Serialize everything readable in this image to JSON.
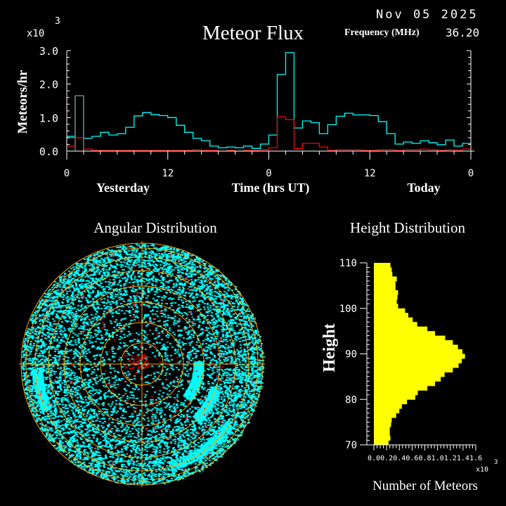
{
  "header": {
    "date": "Nov 05 2025",
    "title": "Meteor Flux",
    "frequency_label": "Frequency (MHz)",
    "frequency_value": "36.20"
  },
  "chart_data": [
    {
      "type": "line",
      "title": "Meteor Flux",
      "ylabel": "Meteors/hr",
      "yscale_label": "x10",
      "yscale_exp": "3",
      "xlabel": "Time (hrs UT)",
      "day_labels": [
        "Yesterday",
        "Today"
      ],
      "x_tick_labels": [
        "0",
        "12",
        "0",
        "12",
        "0"
      ],
      "x_tick_hours": [
        0,
        12,
        24,
        36,
        48
      ],
      "y_tick_labels": [
        "0.0",
        "1.0",
        "2.0",
        "3.0"
      ],
      "ylim": [
        0,
        3.0
      ],
      "xlim": [
        0,
        48
      ],
      "step": "histogram, hourly bins",
      "colors": {
        "total": "#00ffff",
        "secondary": "#ff0000",
        "previous": "#808080",
        "axes": "#ffffff"
      },
      "series": [
        {
          "color": "#00ffff",
          "values": [
            0.44,
            1.65,
            0.38,
            0.44,
            0.56,
            0.48,
            0.52,
            0.71,
            1.05,
            1.15,
            1.09,
            1.06,
            1.0,
            0.77,
            0.56,
            0.38,
            0.31,
            0.15,
            0.1,
            0.12,
            0.1,
            0.15,
            0.08,
            0.21,
            0.48,
            2.29,
            2.94,
            0.69,
            0.9,
            0.85,
            0.52,
            0.79,
            1.04,
            1.13,
            1.08,
            1.08,
            1.06,
            0.88,
            0.52,
            0.21,
            0.27,
            0.23,
            0.31,
            0.25,
            0.19,
            0.33,
            0.15,
            0.23
          ]
        },
        {
          "color": "#ff0000",
          "values": [
            0.15,
            0.4,
            0.06,
            0.02,
            0.02,
            0.02,
            0.02,
            0.02,
            0.02,
            0.02,
            0.02,
            0.02,
            0.02,
            0.02,
            0.02,
            0.04,
            0.02,
            0.02,
            0.0,
            0.02,
            0.0,
            0.02,
            0.02,
            0.04,
            0.1,
            1.02,
            0.94,
            0.08,
            0.23,
            0.23,
            0.12,
            0.02,
            0.04,
            0.04,
            0.04,
            0.02,
            0.02,
            0.04,
            0.04,
            0.02,
            0.04,
            0.04,
            0.06,
            0.04,
            0.02,
            0.04,
            0.02,
            0.06
          ]
        },
        {
          "color": "#808080",
          "values": [
            0.4,
            1.65
          ]
        }
      ]
    },
    {
      "type": "scatter",
      "title": "Angular Distribution",
      "projection": "polar (all-sky)",
      "colors": {
        "points": "#00ffff",
        "secondary_points": "#ff0000",
        "grid": "#ffa500"
      }
    },
    {
      "type": "bar",
      "orientation": "horizontal",
      "title": "Height Distribution",
      "ylabel": "Height",
      "xlabel": "Number of Meteors",
      "xscale_label": "x10",
      "xscale_exp": "3",
      "y_tick_labels": [
        "70",
        "80",
        "90",
        "100",
        "110"
      ],
      "x_tick_labels": [
        "0.0",
        "0.2",
        "0.4",
        "0.6",
        "0.8",
        "1.0",
        "1.2",
        "1.4",
        "1.6"
      ],
      "ylim": [
        70,
        110
      ],
      "xlim": [
        0,
        1.6
      ],
      "color": "#ffff00",
      "bin_top_heights": [
        110,
        109,
        108,
        107,
        106,
        105,
        104,
        103,
        102,
        101,
        100,
        99,
        98,
        97,
        96,
        95,
        94,
        93,
        92,
        91,
        90,
        89,
        88,
        87,
        86,
        85,
        84,
        83,
        82,
        81,
        80,
        79,
        78,
        77,
        76,
        75,
        74,
        73,
        72,
        71
      ],
      "values": [
        0.26,
        0.28,
        0.29,
        0.36,
        0.34,
        0.34,
        0.38,
        0.37,
        0.36,
        0.38,
        0.49,
        0.54,
        0.61,
        0.68,
        0.84,
        0.96,
        1.12,
        1.24,
        1.32,
        1.39,
        1.43,
        1.38,
        1.33,
        1.24,
        1.11,
        1.05,
        0.96,
        0.84,
        0.69,
        0.65,
        0.52,
        0.44,
        0.4,
        0.35,
        0.28,
        0.27,
        0.25,
        0.25,
        0.26,
        0.23
      ]
    }
  ]
}
